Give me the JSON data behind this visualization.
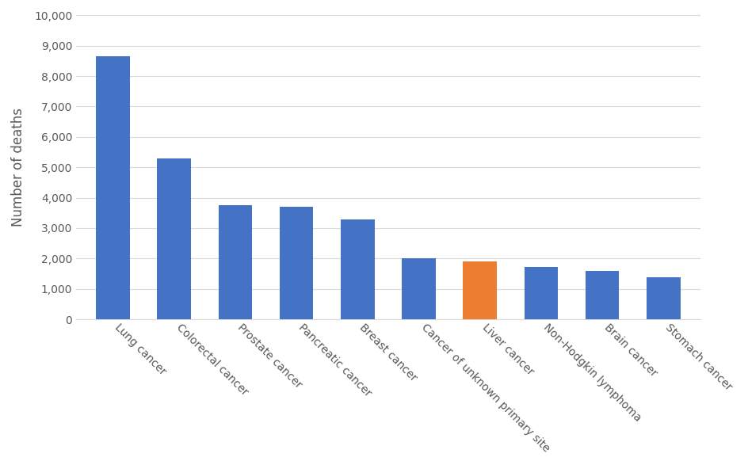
{
  "categories": [
    "Lung cancer",
    "Colorectal cancer",
    "Prostate cancer",
    "Pancreatic cancer",
    "Breast cancer",
    "Cancer of unknown primary site",
    "Liver cancer",
    "Non-Hodgkin lymphoma",
    "Brain cancer",
    "Stomach cancer"
  ],
  "values": [
    8650,
    5300,
    3750,
    3700,
    3275,
    2000,
    1900,
    1725,
    1600,
    1375
  ],
  "bar_colors": [
    "#4472C4",
    "#4472C4",
    "#4472C4",
    "#4472C4",
    "#4472C4",
    "#4472C4",
    "#ED7D31",
    "#4472C4",
    "#4472C4",
    "#4472C4"
  ],
  "ylabel": "Number of deaths",
  "ylim": [
    0,
    10000
  ],
  "yticks": [
    0,
    1000,
    2000,
    3000,
    4000,
    5000,
    6000,
    7000,
    8000,
    9000,
    10000
  ],
  "background_color": "#ffffff",
  "grid_color": "#d9d9d9",
  "bar_width": 0.55,
  "ylabel_fontsize": 12,
  "tick_fontsize": 10,
  "label_color": "#595959"
}
